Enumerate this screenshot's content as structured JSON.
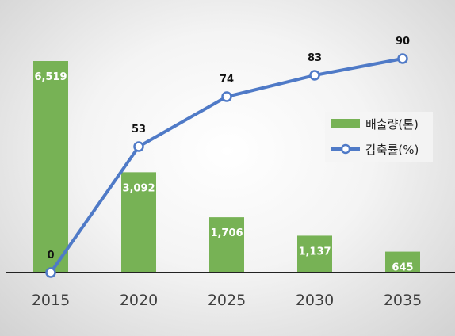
{
  "chart_data": {
    "type": "bar+line",
    "categories": [
      "2015",
      "2020",
      "2025",
      "2030",
      "2035"
    ],
    "series": [
      {
        "name": "배출량(톤)",
        "type": "bar",
        "values": [
          6519,
          3092,
          1706,
          1137,
          645
        ],
        "labels": [
          "6,519",
          "3,092",
          "1,706",
          "1,137",
          "645"
        ],
        "color": "#77b255"
      },
      {
        "name": "감축률(%)",
        "type": "line",
        "values": [
          0,
          53,
          74,
          83,
          90
        ],
        "labels": [
          "0",
          "53",
          "74",
          "83",
          "90"
        ],
        "color": "#4f7ac7"
      }
    ],
    "bar_axis_range": [
      0,
      6519
    ],
    "line_axis_range": [
      0,
      100
    ],
    "legend_position": "right",
    "grid": false
  }
}
